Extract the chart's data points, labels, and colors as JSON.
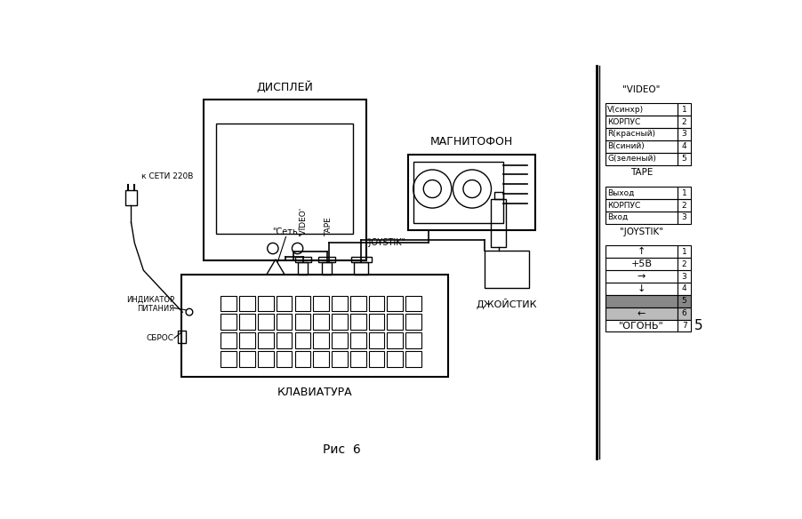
{
  "title": "Рис  6",
  "bg_color": "#ffffff",
  "line_color": "#000000",
  "display_label": "ДИСПЛЕЙ",
  "magnitofon_label": "МАГНИТОФОН",
  "keyboard_label": "КЛАВИАТУРА",
  "joystick_label": "ДЖОЙСТИК",
  "k_seti_label": "к СЕТИ 220В",
  "indikator_label": "ИНДИКАТОР\nПИТАНИЯ",
  "sbros_label": "СБРОС",
  "set_label": "\"Сеть'",
  "video_connector_label": "'VIDEO'",
  "tape_connector_label": "TAPE",
  "joystik_connector_label": "\"JOYSTIK\"",
  "video_table_title": "\"VIDEO\"",
  "video_rows": [
    [
      "V(синхр)",
      "1"
    ],
    [
      "КОРПУС",
      "2"
    ],
    [
      "R(красный)",
      "3"
    ],
    [
      "B(синий)",
      "4"
    ],
    [
      "G(зеленый)",
      "5"
    ]
  ],
  "tape_table_title": "TAPE",
  "tape_rows": [
    [
      "Выход",
      "1"
    ],
    [
      "КОРПУС",
      "2"
    ],
    [
      "Вход",
      "3"
    ]
  ],
  "joystik_table_title": "\"JOYSTIK\"",
  "joystik_rows": [
    [
      "↑",
      "1"
    ],
    [
      "+5В",
      "2"
    ],
    [
      "→",
      "3"
    ],
    [
      "↓",
      "4"
    ],
    [
      "",
      "5"
    ],
    [
      "←",
      "6"
    ],
    [
      "\"ОГОНЬ\"",
      "7"
    ]
  ],
  "page_number": "5"
}
